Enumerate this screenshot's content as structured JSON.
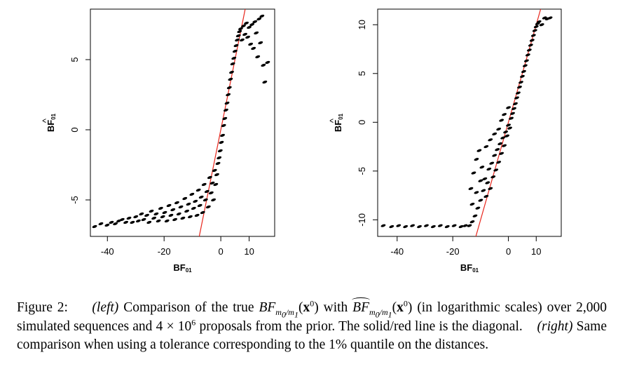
{
  "figure": {
    "caption": {
      "label": "Figure 2:",
      "left_tag": "(left)",
      "part1": "Comparison of the true",
      "bf": "BF",
      "sub": "m",
      "sub_index_0": "0",
      "sub_slash": "/m",
      "sub_index_1": "1",
      "arg_open": "(",
      "x": "x",
      "sup0": "0",
      "arg_close": ")",
      "with": "with",
      "part2": "(in logarithmic scales) over 2,000 simulated sequences and 4 × 10",
      "exp6": "6",
      "part3": "proposals from the prior. The solid/red line is the diagonal.",
      "right_tag": "(right)",
      "part4": "Same comparison when using a tolerance corresponding to the 1% quantile on the distances."
    }
  },
  "chart_data": [
    {
      "type": "scatter",
      "panel": "left",
      "xlabel": "BF01",
      "ylabel": "BF01 (hat)",
      "xlim": [
        -46,
        19
      ],
      "ylim": [
        -7.6,
        8.6
      ],
      "xticks": [
        -40,
        -20,
        0,
        10
      ],
      "yticks": [
        -5,
        0,
        5
      ],
      "grid": false,
      "series": [
        {
          "points": [
            [
              -44.5,
              -6.9
            ],
            [
              -42.3,
              -6.7
            ],
            [
              -40.1,
              -6.8
            ],
            [
              -38.6,
              -6.6
            ],
            [
              -37.2,
              -6.7
            ],
            [
              -36.0,
              -6.5
            ],
            [
              -34.8,
              -6.4
            ],
            [
              -33.5,
              -6.6
            ],
            [
              -32.4,
              -6.3
            ],
            [
              -31.2,
              -6.6
            ],
            [
              -30.0,
              -6.2
            ],
            [
              -29.1,
              -6.5
            ],
            [
              -28.0,
              -6.0
            ],
            [
              -27.2,
              -6.4
            ],
            [
              -26.1,
              -6.1
            ],
            [
              -25.3,
              -6.6
            ],
            [
              -24.5,
              -5.8
            ],
            [
              -23.6,
              -6.3
            ],
            [
              -22.8,
              -6.0
            ],
            [
              -22.0,
              -6.5
            ],
            [
              -21.2,
              -5.6
            ],
            [
              -20.5,
              -6.2
            ],
            [
              -19.8,
              -5.9
            ],
            [
              -19.0,
              -6.5
            ],
            [
              -18.3,
              -5.4
            ],
            [
              -17.6,
              -6.1
            ],
            [
              -16.9,
              -5.7
            ],
            [
              -16.2,
              -6.4
            ],
            [
              -15.5,
              -5.2
            ],
            [
              -14.8,
              -6.0
            ],
            [
              -14.1,
              -5.5
            ],
            [
              -13.4,
              -6.3
            ],
            [
              -12.7,
              -4.9
            ],
            [
              -12.0,
              -5.8
            ],
            [
              -11.4,
              -5.3
            ],
            [
              -10.8,
              -6.2
            ],
            [
              -10.2,
              -4.6
            ],
            [
              -9.6,
              -5.6
            ],
            [
              -9.0,
              -5.1
            ],
            [
              -8.4,
              -6.1
            ],
            [
              -7.9,
              -4.3
            ],
            [
              -7.4,
              -5.4
            ],
            [
              -6.9,
              -4.8
            ],
            [
              -6.4,
              -5.9
            ],
            [
              -5.9,
              -3.9
            ],
            [
              -5.4,
              -5.0
            ],
            [
              -4.9,
              -4.4
            ],
            [
              -4.4,
              -5.5
            ],
            [
              -3.9,
              -3.4
            ],
            [
              -3.4,
              -4.5
            ],
            [
              -3.0,
              -3.8
            ],
            [
              -2.6,
              -5.0
            ],
            [
              -2.2,
              -2.9
            ],
            [
              -1.8,
              -3.9
            ],
            [
              -1.4,
              -3.2
            ],
            [
              -1.0,
              -2.4
            ],
            [
              -0.6,
              -2.0
            ],
            [
              -0.2,
              -1.5
            ],
            [
              0.2,
              -0.9
            ],
            [
              0.6,
              -0.4
            ],
            [
              1.0,
              0.3
            ],
            [
              1.4,
              0.8
            ],
            [
              1.8,
              1.4
            ],
            [
              2.2,
              1.9
            ],
            [
              2.6,
              2.5
            ],
            [
              3.0,
              3.0
            ],
            [
              3.4,
              3.6
            ],
            [
              3.8,
              4.1
            ],
            [
              4.2,
              4.7
            ],
            [
              4.6,
              5.1
            ],
            [
              5.0,
              5.6
            ],
            [
              5.4,
              6.0
            ],
            [
              5.8,
              6.4
            ],
            [
              6.2,
              6.7
            ],
            [
              6.6,
              7.0
            ],
            [
              7.0,
              7.2
            ],
            [
              7.5,
              6.4
            ],
            [
              8.0,
              7.4
            ],
            [
              8.5,
              6.8
            ],
            [
              9.0,
              7.6
            ],
            [
              9.5,
              6.6
            ],
            [
              10.0,
              7.3
            ],
            [
              10.5,
              6.1
            ],
            [
              11.0,
              7.5
            ],
            [
              11.5,
              5.8
            ],
            [
              12.0,
              7.7
            ],
            [
              12.5,
              6.9
            ],
            [
              13.0,
              5.2
            ],
            [
              13.5,
              7.9
            ],
            [
              14.0,
              6.2
            ],
            [
              14.5,
              8.1
            ],
            [
              15.0,
              4.6
            ],
            [
              15.5,
              3.4
            ],
            [
              16.5,
              4.8
            ]
          ]
        }
      ],
      "reference_line": {
        "type": "diagonal",
        "color": "#e8261c"
      }
    },
    {
      "type": "scatter",
      "panel": "right",
      "xlabel": "BF01",
      "ylabel": "BF01 (hat)",
      "xlim": [
        -47,
        19
      ],
      "ylim": [
        -11.7,
        11.6
      ],
      "xticks": [
        -40,
        -20,
        0,
        10
      ],
      "yticks": [
        -10,
        -5,
        0,
        5,
        10
      ],
      "grid": false,
      "series": [
        {
          "points": [
            [
              -45.0,
              -10.6
            ],
            [
              -42.0,
              -10.7
            ],
            [
              -39.5,
              -10.6
            ],
            [
              -37.0,
              -10.7
            ],
            [
              -34.5,
              -10.6
            ],
            [
              -32.0,
              -10.7
            ],
            [
              -29.5,
              -10.6
            ],
            [
              -27.0,
              -10.7
            ],
            [
              -24.5,
              -10.6
            ],
            [
              -22.0,
              -10.7
            ],
            [
              -19.5,
              -10.6
            ],
            [
              -17.0,
              -10.7
            ],
            [
              -15.5,
              -10.6
            ],
            [
              -14.0,
              -10.6
            ],
            [
              -13.0,
              -10.2
            ],
            [
              -12.0,
              -9.6
            ],
            [
              -11.0,
              -8.8
            ],
            [
              -10.0,
              -8.0
            ],
            [
              -9.0,
              -7.0
            ],
            [
              -8.5,
              -5.8
            ],
            [
              -8.0,
              -7.6
            ],
            [
              -7.5,
              -6.2
            ],
            [
              -7.0,
              -4.8
            ],
            [
              -6.5,
              -6.8
            ],
            [
              -6.0,
              -4.2
            ],
            [
              -5.5,
              -5.6
            ],
            [
              -5.0,
              -3.4
            ],
            [
              -4.5,
              -4.9
            ],
            [
              -4.0,
              -2.8
            ],
            [
              -3.5,
              -4.1
            ],
            [
              -3.0,
              -2.2
            ],
            [
              -2.5,
              -3.2
            ],
            [
              -2.0,
              -1.6
            ],
            [
              -1.5,
              -2.4
            ],
            [
              -1.0,
              -1.0
            ],
            [
              -0.5,
              -1.4
            ],
            [
              0.0,
              -0.3
            ],
            [
              0.5,
              -0.6
            ],
            [
              1.0,
              0.4
            ],
            [
              1.5,
              0.9
            ],
            [
              2.0,
              1.4
            ],
            [
              2.5,
              1.9
            ],
            [
              3.0,
              2.5
            ],
            [
              3.5,
              3.0
            ],
            [
              4.0,
              3.6
            ],
            [
              4.5,
              4.1
            ],
            [
              5.0,
              4.7
            ],
            [
              5.5,
              5.2
            ],
            [
              6.0,
              5.8
            ],
            [
              6.5,
              6.3
            ],
            [
              7.0,
              6.9
            ],
            [
              7.5,
              7.4
            ],
            [
              8.0,
              7.9
            ],
            [
              8.5,
              8.4
            ],
            [
              9.0,
              8.9
            ],
            [
              9.5,
              9.4
            ],
            [
              10.0,
              9.8
            ],
            [
              10.5,
              10.1
            ],
            [
              11.0,
              10.3
            ],
            [
              12.0,
              10.0
            ],
            [
              13.0,
              10.7
            ],
            [
              14.0,
              10.6
            ],
            [
              15.0,
              10.7
            ],
            [
              -13.5,
              -6.8
            ],
            [
              -12.5,
              -5.2
            ],
            [
              -11.5,
              -3.8
            ],
            [
              -10.5,
              -2.9
            ],
            [
              -9.5,
              -4.6
            ],
            [
              -13.0,
              -8.4
            ],
            [
              -11.5,
              -7.2
            ],
            [
              -10.0,
              -6.0
            ],
            [
              -8.0,
              -2.5
            ],
            [
              -6.5,
              -1.8
            ],
            [
              -5.0,
              -1.2
            ],
            [
              -3.5,
              -0.7
            ],
            [
              -2.5,
              0.2
            ],
            [
              -1.5,
              0.8
            ],
            [
              0.0,
              1.5
            ]
          ]
        }
      ],
      "reference_line": {
        "type": "diagonal",
        "color": "#e8261c"
      }
    }
  ]
}
